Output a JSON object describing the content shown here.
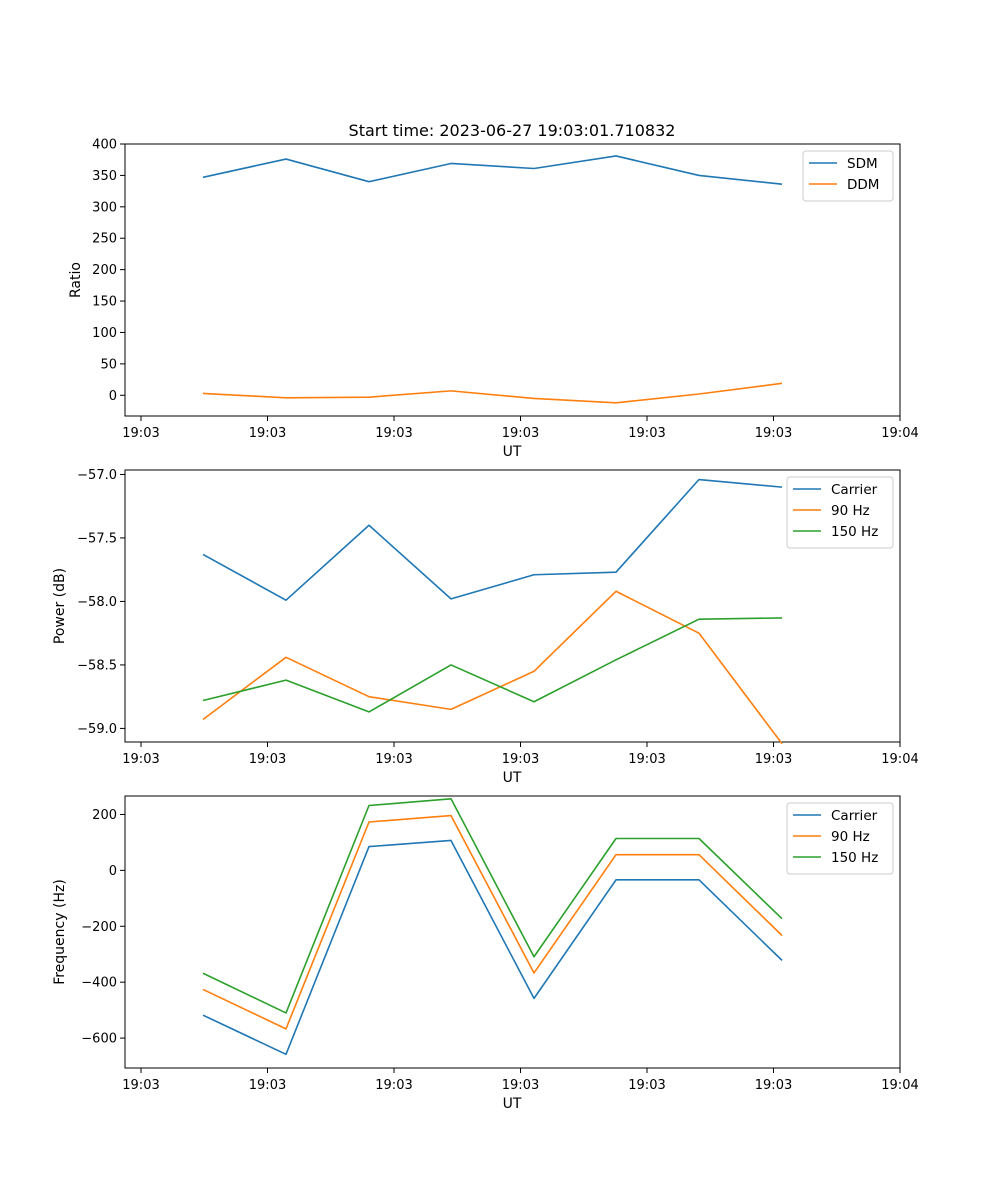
{
  "title": "Start time: 2023-06-27 19:03:01.710832",
  "chart_data": [
    {
      "type": "line",
      "xlabel": "UT",
      "ylabel": "Ratio",
      "x_tick_labels": [
        "19:03",
        "19:03",
        "19:03",
        "19:03",
        "19:03",
        "19:03",
        "19:04"
      ],
      "ylim": [
        -33,
        400
      ],
      "yticks": [
        0,
        50,
        100,
        150,
        200,
        250,
        300,
        350,
        400
      ],
      "yticks_text": [
        "0",
        "50",
        "100",
        "150",
        "200",
        "250",
        "300",
        "350",
        "400"
      ],
      "legend": "top-right",
      "series": [
        {
          "name": "SDM",
          "color": "#1f77b4",
          "values": [
            347,
            376,
            340,
            369,
            361,
            381,
            350,
            336
          ]
        },
        {
          "name": "DDM",
          "color": "#ff7f0e",
          "values": [
            3,
            -4,
            -3,
            7,
            -5,
            -12,
            2,
            19
          ]
        }
      ]
    },
    {
      "type": "line",
      "xlabel": "UT",
      "ylabel": "Power (dB)",
      "x_tick_labels": [
        "19:03",
        "19:03",
        "19:03",
        "19:03",
        "19:03",
        "19:03",
        "19:04"
      ],
      "ylim": [
        -59.107,
        -56.965
      ],
      "yticks": [
        -59.0,
        -58.5,
        -58.0,
        -57.5,
        -57.0
      ],
      "yticks_text": [
        "−59.0",
        "−58.5",
        "−58.0",
        "−57.5",
        "−57.0"
      ],
      "legend": "top-right",
      "series": [
        {
          "name": "Carrier",
          "color": "#1f77b4",
          "values": [
            -57.63,
            -57.99,
            -57.4,
            -57.98,
            -57.79,
            -57.77,
            -57.04,
            -57.1
          ]
        },
        {
          "name": "90 Hz",
          "color": "#ff7f0e",
          "values": [
            -58.93,
            -58.44,
            -58.75,
            -58.85,
            -58.55,
            -57.92,
            -58.25,
            -59.12
          ]
        },
        {
          "name": "150 Hz",
          "color": "#2ca02c",
          "values": [
            -58.78,
            -58.62,
            -58.87,
            -58.5,
            -58.79,
            -58.46,
            -58.14,
            -58.13
          ]
        }
      ]
    },
    {
      "type": "line",
      "xlabel": "UT",
      "ylabel": "Frequency (Hz)",
      "x_tick_labels": [
        "19:03",
        "19:03",
        "19:03",
        "19:03",
        "19:03",
        "19:03",
        "19:04"
      ],
      "ylim": [
        -707,
        266
      ],
      "yticks": [
        -600,
        -400,
        -200,
        0,
        200
      ],
      "yticks_text": [
        "−600",
        "−400",
        "−200",
        "0",
        "200"
      ],
      "legend": "top-right",
      "series": [
        {
          "name": "Carrier",
          "color": "#1f77b4",
          "values": [
            -518,
            -658,
            85,
            107,
            -458,
            -34,
            -34,
            -322
          ]
        },
        {
          "name": "90 Hz",
          "color": "#ff7f0e",
          "values": [
            -426,
            -567,
            173,
            196,
            -367,
            56,
            56,
            -233
          ]
        },
        {
          "name": "150 Hz",
          "color": "#2ca02c",
          "values": [
            -368,
            -510,
            232,
            256,
            -309,
            114,
            114,
            -173
          ]
        }
      ]
    }
  ]
}
